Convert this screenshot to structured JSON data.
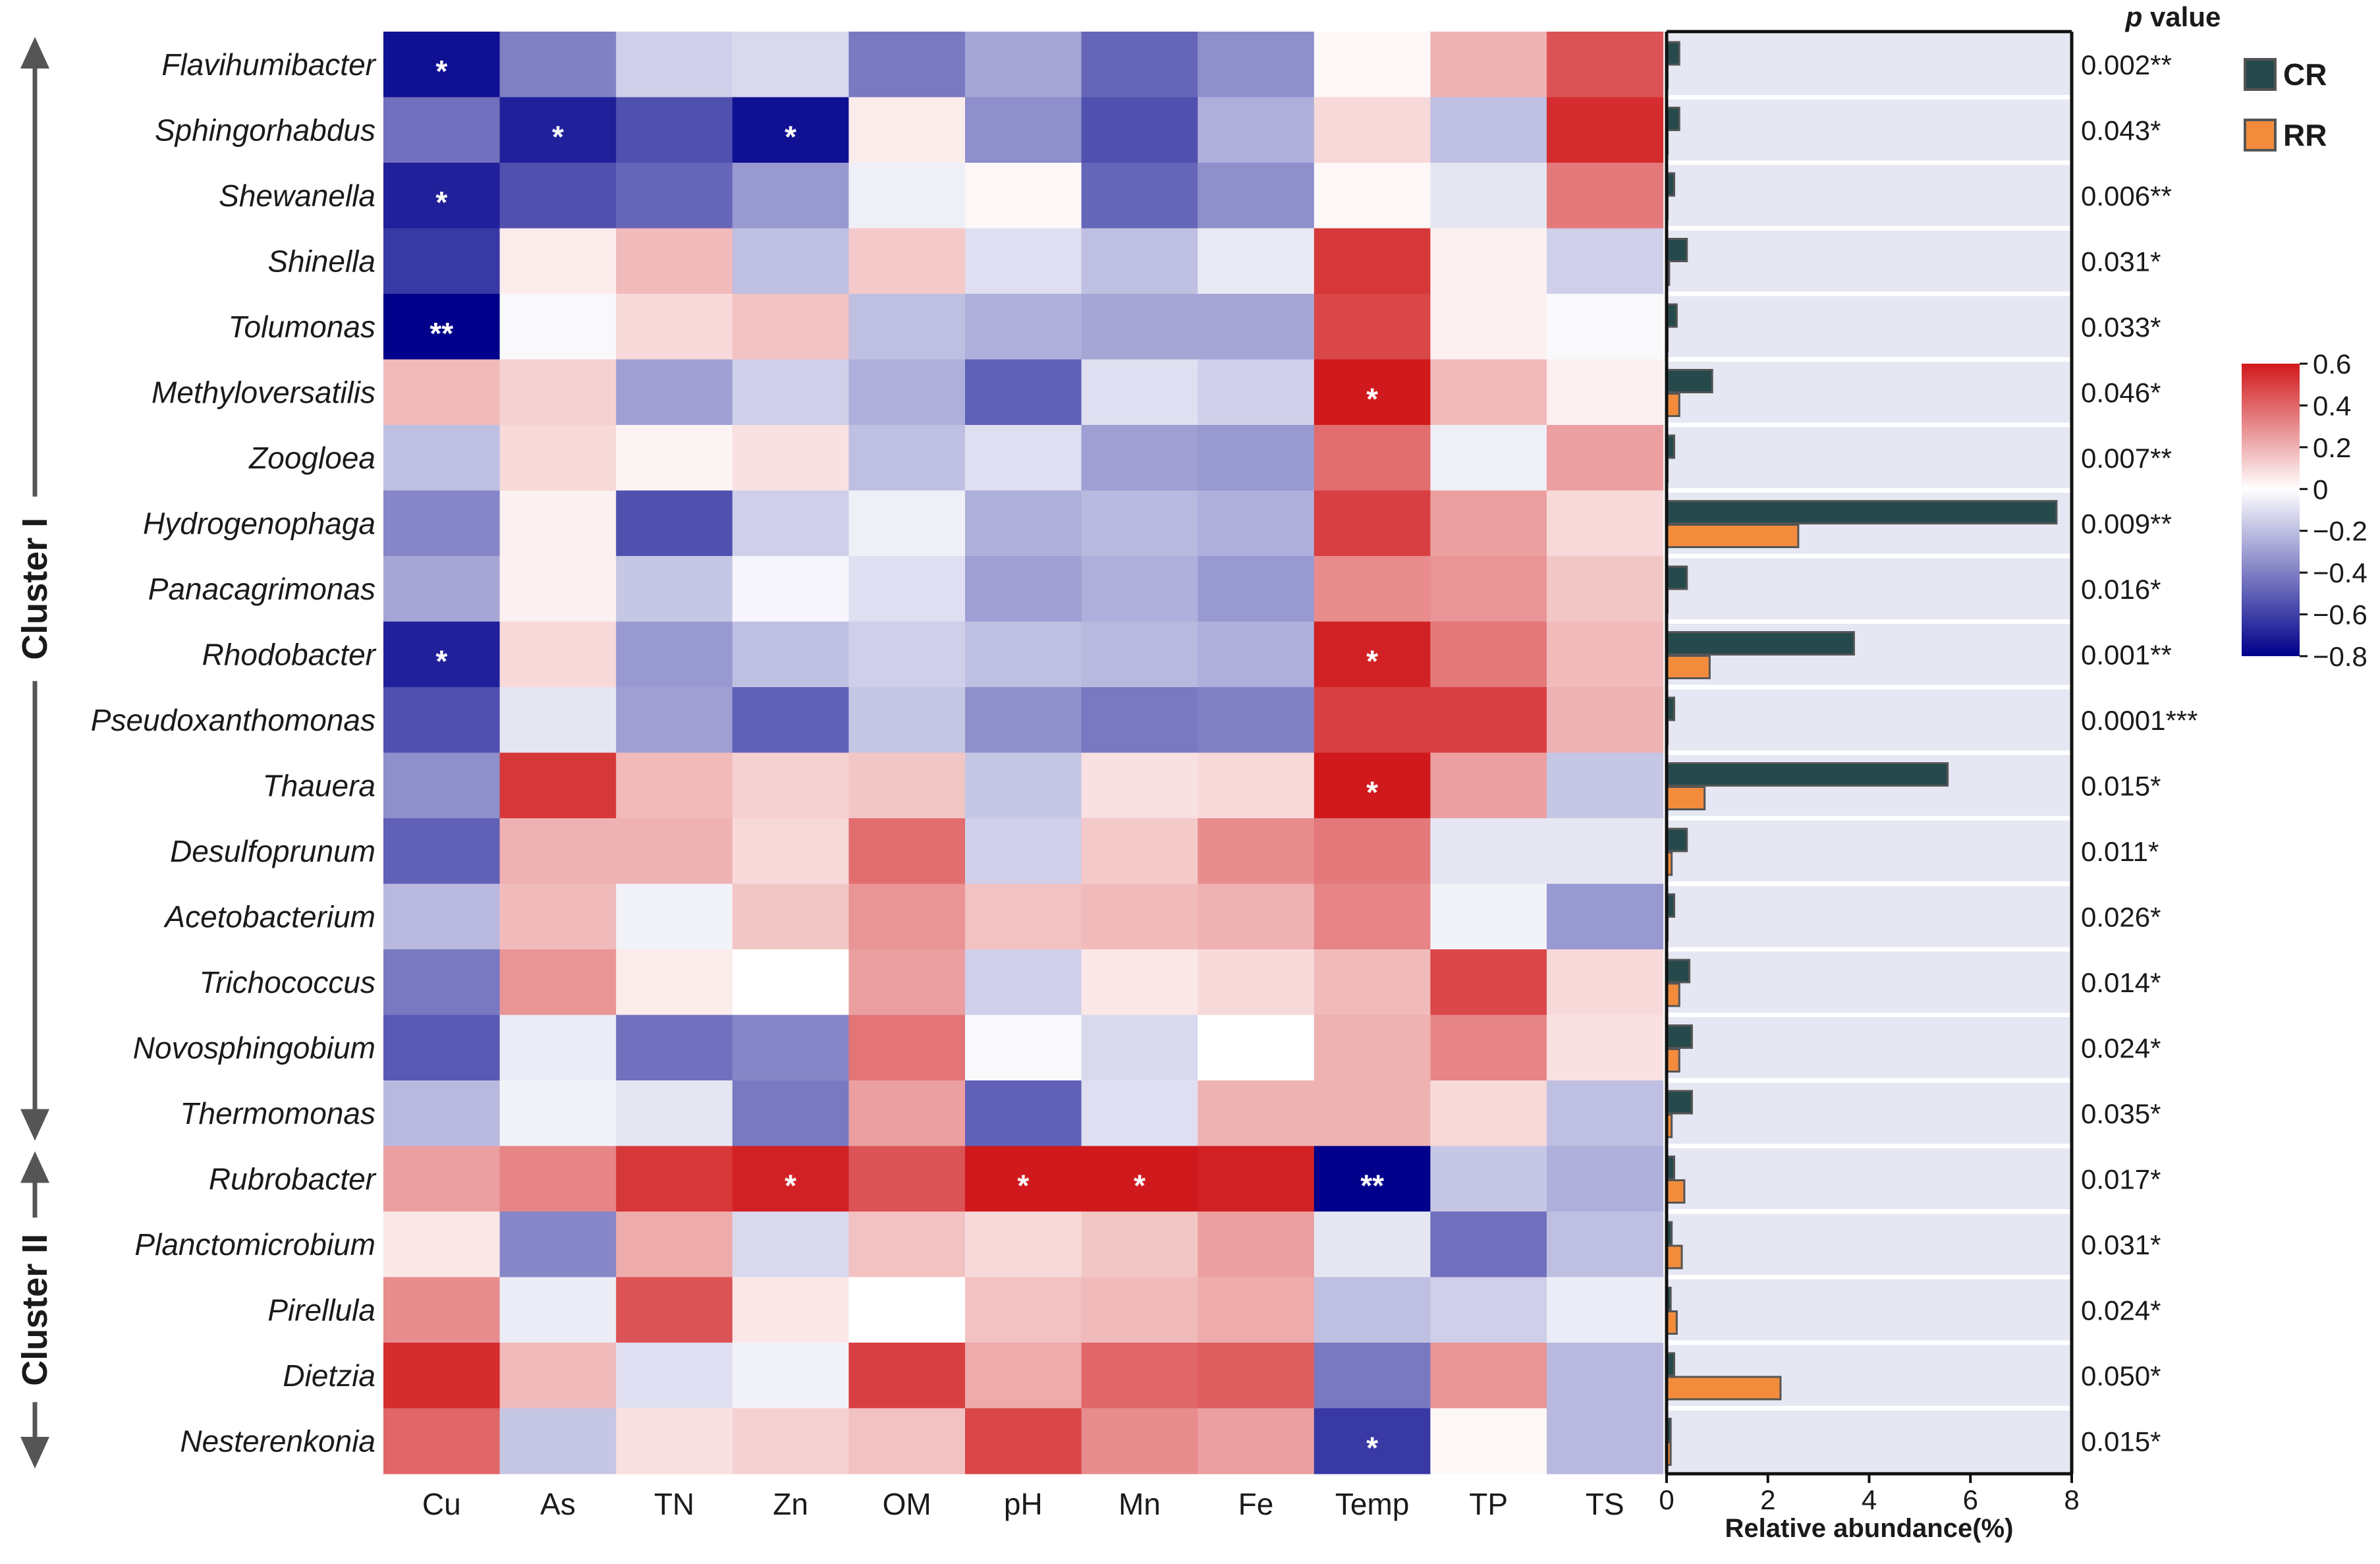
{
  "chart_data": {
    "type": "heatmap",
    "columns": [
      "Cu",
      "As",
      "TN",
      "Zn",
      "OM",
      "pH",
      "Mn",
      "Fe",
      "Temp",
      "TP",
      "TS"
    ],
    "rows": [
      {
        "genus": "Flavihumibacter",
        "corr": [
          -0.75,
          -0.4,
          -0.15,
          -0.12,
          -0.42,
          -0.28,
          -0.48,
          -0.35,
          0.02,
          0.2,
          0.45
        ],
        "sig": [
          "*",
          "",
          "",
          "",
          "",
          "",
          "",
          "",
          "",
          "",
          ""
        ],
        "cr": 0.25,
        "rr": 0.02,
        "p": "0.002**"
      },
      {
        "genus": "Sphingorhabdus",
        "corr": [
          -0.45,
          -0.7,
          -0.55,
          -0.75,
          0.05,
          -0.35,
          -0.55,
          -0.25,
          0.1,
          -0.2,
          0.55
        ],
        "sig": [
          "",
          "*",
          "",
          "*",
          "",
          "",
          "",
          "",
          "",
          "",
          ""
        ],
        "cr": 0.25,
        "rr": 0.02,
        "p": "0.043*"
      },
      {
        "genus": "Shewanella",
        "corr": [
          -0.7,
          -0.55,
          -0.48,
          -0.32,
          -0.05,
          0.02,
          -0.48,
          -0.35,
          0.02,
          -0.08,
          0.35
        ],
        "sig": [
          "*",
          "",
          "",
          "",
          "",
          "",
          "",
          "",
          "",
          "",
          ""
        ],
        "cr": 0.15,
        "rr": 0.02,
        "p": "0.006**"
      },
      {
        "genus": "Shinella",
        "corr": [
          -0.62,
          0.05,
          0.18,
          -0.2,
          0.14,
          -0.1,
          -0.2,
          -0.07,
          0.52,
          0.04,
          -0.15
        ],
        "sig": [
          "",
          "",
          "",
          "",
          "",
          "",
          "",
          "",
          "",
          "",
          ""
        ],
        "cr": 0.4,
        "rr": 0.05,
        "p": "0.031*"
      },
      {
        "genus": "Tolumonas",
        "corr": [
          -0.8,
          -0.02,
          0.1,
          0.16,
          -0.2,
          -0.25,
          -0.28,
          -0.28,
          0.48,
          0.04,
          -0.02
        ],
        "sig": [
          "**",
          "",
          "",
          "",
          "",
          "",
          "",
          "",
          "",
          "",
          ""
        ],
        "cr": 0.2,
        "rr": 0.02,
        "p": "0.033*"
      },
      {
        "genus": "Methyloversatilis",
        "corr": [
          0.18,
          0.12,
          -0.3,
          -0.15,
          -0.25,
          -0.5,
          -0.1,
          -0.15,
          0.62,
          0.18,
          0.04
        ],
        "sig": [
          "",
          "",
          "",
          "",
          "",
          "",
          "",
          "",
          "*",
          "",
          ""
        ],
        "cr": 0.9,
        "rr": 0.25,
        "p": "0.046*"
      },
      {
        "genus": "Zoogloea",
        "corr": [
          -0.2,
          0.1,
          0.03,
          0.08,
          -0.2,
          -0.1,
          -0.3,
          -0.32,
          0.38,
          -0.05,
          0.25
        ],
        "sig": [
          "",
          "",
          "",
          "",
          "",
          "",
          "",
          "",
          "",
          "",
          ""
        ],
        "cr": 0.15,
        "rr": 0.02,
        "p": "0.007**"
      },
      {
        "genus": "Hydrogenophaga",
        "corr": [
          -0.38,
          0.04,
          -0.55,
          -0.15,
          -0.05,
          -0.25,
          -0.22,
          -0.25,
          0.5,
          0.25,
          0.1
        ],
        "sig": [
          "",
          "",
          "",
          "",
          "",
          "",
          "",
          "",
          "",
          "",
          ""
        ],
        "cr": 7.7,
        "rr": 2.6,
        "p": "0.009**"
      },
      {
        "genus": "Panacagrimonas",
        "corr": [
          -0.28,
          0.04,
          -0.18,
          -0.03,
          -0.1,
          -0.3,
          -0.25,
          -0.32,
          0.3,
          0.28,
          0.15
        ],
        "sig": [
          "",
          "",
          "",
          "",
          "",
          "",
          "",
          "",
          "",
          "",
          ""
        ],
        "cr": 0.4,
        "rr": 0.02,
        "p": "0.016*"
      },
      {
        "genus": "Rhodobacter",
        "corr": [
          -0.7,
          0.1,
          -0.32,
          -0.2,
          -0.15,
          -0.2,
          -0.22,
          -0.25,
          0.58,
          0.35,
          0.18
        ],
        "sig": [
          "*",
          "",
          "",
          "",
          "",
          "",
          "",
          "",
          "*",
          "",
          ""
        ],
        "cr": 3.7,
        "rr": 0.85,
        "p": "0.001**"
      },
      {
        "genus": "Pseudoxanthomonas",
        "corr": [
          -0.55,
          -0.08,
          -0.3,
          -0.5,
          -0.18,
          -0.35,
          -0.42,
          -0.4,
          0.5,
          0.5,
          0.2
        ],
        "sig": [
          "",
          "",
          "",
          "",
          "",
          "",
          "",
          "",
          "",
          "",
          ""
        ],
        "cr": 0.15,
        "rr": 0.02,
        "p": "0.0001***"
      },
      {
        "genus": "Thauera",
        "corr": [
          -0.35,
          0.52,
          0.18,
          0.12,
          0.15,
          -0.18,
          0.08,
          0.1,
          0.62,
          0.25,
          -0.18
        ],
        "sig": [
          "",
          "",
          "",
          "",
          "",
          "",
          "",
          "",
          "*",
          "",
          ""
        ],
        "cr": 5.55,
        "rr": 0.75,
        "p": "0.015*"
      },
      {
        "genus": "Desulfoprunum",
        "corr": [
          -0.5,
          0.2,
          0.2,
          0.1,
          0.38,
          -0.15,
          0.14,
          0.3,
          0.35,
          -0.08,
          -0.08
        ],
        "sig": [
          "",
          "",
          "",
          "",
          "",
          "",
          "",
          "",
          "",
          "",
          ""
        ],
        "cr": 0.4,
        "rr": 0.1,
        "p": "0.011*"
      },
      {
        "genus": "Acetobacterium",
        "corr": [
          -0.22,
          0.18,
          -0.04,
          0.15,
          0.28,
          0.16,
          0.18,
          0.2,
          0.32,
          -0.04,
          -0.32
        ],
        "sig": [
          "",
          "",
          "",
          "",
          "",
          "",
          "",
          "",
          "",
          "",
          ""
        ],
        "cr": 0.15,
        "rr": 0.02,
        "p": "0.026*"
      },
      {
        "genus": "Trichococcus",
        "corr": [
          -0.42,
          0.28,
          0.05,
          0.0,
          0.25,
          -0.15,
          0.06,
          0.1,
          0.18,
          0.48,
          0.1
        ],
        "sig": [
          "",
          "",
          "",
          "",
          "",
          "",
          "",
          "",
          "",
          "",
          ""
        ],
        "cr": 0.45,
        "rr": 0.25,
        "p": "0.014*"
      },
      {
        "genus": "Novosphingobium",
        "corr": [
          -0.52,
          -0.06,
          -0.45,
          -0.38,
          0.36,
          -0.02,
          -0.12,
          0.0,
          0.2,
          0.32,
          0.08
        ],
        "sig": [
          "",
          "",
          "",
          "",
          "",
          "",
          "",
          "",
          "",
          "",
          ""
        ],
        "cr": 0.5,
        "rr": 0.25,
        "p": "0.024*"
      },
      {
        "genus": "Thermomonas",
        "corr": [
          -0.22,
          -0.04,
          -0.08,
          -0.42,
          0.25,
          -0.5,
          -0.1,
          0.2,
          0.2,
          0.1,
          -0.2
        ],
        "sig": [
          "",
          "",
          "",
          "",
          "",
          "",
          "",
          "",
          "",
          "",
          ""
        ],
        "cr": 0.5,
        "rr": 0.1,
        "p": "0.035*"
      },
      {
        "genus": "Rubrobacter",
        "corr": [
          0.25,
          0.32,
          0.52,
          0.58,
          0.45,
          0.62,
          0.6,
          0.58,
          -0.8,
          -0.18,
          -0.25
        ],
        "sig": [
          "",
          "",
          "",
          "*",
          "",
          "*",
          "*",
          "",
          "**",
          "",
          ""
        ],
        "cr": 0.15,
        "rr": 0.35,
        "p": "0.017*"
      },
      {
        "genus": "Planctomicrobium",
        "corr": [
          0.06,
          -0.38,
          0.22,
          -0.12,
          0.16,
          0.1,
          0.15,
          0.25,
          -0.08,
          -0.45,
          -0.2
        ],
        "sig": [
          "",
          "",
          "",
          "",
          "",
          "",
          "",
          "",
          "",
          "",
          ""
        ],
        "cr": 0.1,
        "rr": 0.3,
        "p": "0.031*"
      },
      {
        "genus": "Pirellula",
        "corr": [
          0.3,
          -0.06,
          0.45,
          0.06,
          0.0,
          0.16,
          0.18,
          0.22,
          -0.2,
          -0.15,
          -0.06
        ],
        "sig": [
          "",
          "",
          "",
          "",
          "",
          "",
          "",
          "",
          "",
          "",
          ""
        ],
        "cr": 0.08,
        "rr": 0.2,
        "p": "0.024*"
      },
      {
        "genus": "Dietzia",
        "corr": [
          0.55,
          0.18,
          -0.1,
          -0.04,
          0.5,
          0.22,
          0.4,
          0.42,
          -0.42,
          0.28,
          -0.22
        ],
        "sig": [
          "",
          "",
          "",
          "",
          "",
          "",
          "",
          "",
          "",
          "",
          ""
        ],
        "cr": 0.15,
        "rr": 2.25,
        "p": "0.050*"
      },
      {
        "genus": "Nesterenkonia",
        "corr": [
          0.4,
          -0.18,
          0.08,
          0.12,
          0.16,
          0.48,
          0.3,
          0.25,
          -0.62,
          0.02,
          -0.22
        ],
        "sig": [
          "",
          "",
          "",
          "",
          "",
          "",
          "",
          "",
          "*",
          "",
          ""
        ],
        "cr": 0.08,
        "rr": 0.08,
        "p": "0.015*"
      }
    ],
    "clusters": [
      {
        "label": "Cluster I",
        "first_row": 0,
        "last_row": 16
      },
      {
        "label": "Cluster II",
        "first_row": 17,
        "last_row": 21
      }
    ],
    "bar_axis": {
      "label": "Relative abundance(%)",
      "min": 0,
      "max": 8,
      "ticks": [
        0,
        2,
        4,
        6,
        8
      ]
    },
    "series": [
      {
        "name": "CR",
        "key": "cr",
        "color": "#264a4c"
      },
      {
        "name": "RR",
        "key": "rr",
        "color": "#f28c3c"
      }
    ],
    "pvalue_header": "p value",
    "colorbar": {
      "min": -0.8,
      "max": 0.6,
      "ticks": [
        0.6,
        0.4,
        0.2,
        0,
        -0.2,
        -0.4,
        -0.6,
        -0.8
      ],
      "tick_labels": [
        "0.6",
        "0.4",
        "0.2",
        "0",
        "−0.2",
        "−0.4",
        "−0.6",
        "−0.8"
      ]
    },
    "colors": {
      "low": "#00008b",
      "mid": "#ffffff",
      "high": "#d0191c",
      "bar_background": "#e5e7f3",
      "cluster_arrow": "#555555"
    }
  }
}
